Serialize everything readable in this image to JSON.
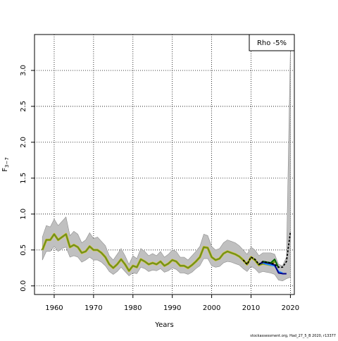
{
  "chart_data": {
    "type": "line",
    "xlabel": "Years",
    "ylabel_main": "F",
    "ylabel_sub": "3−7",
    "xlim": [
      1955,
      2021
    ],
    "ylim": [
      -0.12,
      3.5
    ],
    "xticks": [
      1960,
      1970,
      1980,
      1990,
      2000,
      2010,
      2020
    ],
    "yticks": [
      0.0,
      0.5,
      1.0,
      1.5,
      2.0,
      2.5,
      3.0
    ],
    "ytick_labels": [
      "0.0",
      "0.5",
      "1.0",
      "1.5",
      "2.0",
      "2.5",
      "3.0"
    ],
    "grid": true,
    "legend": {
      "text": "Rho -5%",
      "position": "top-right"
    },
    "footer": "stockassessment.org, Had_27_5_B 2020, r13377",
    "band": {
      "color": "#c0c0c0",
      "x": [
        1957,
        1958,
        1959,
        1960,
        1961,
        1962,
        1963,
        1964,
        1965,
        1966,
        1967,
        1968,
        1969,
        1970,
        1971,
        1972,
        1973,
        1974,
        1975,
        1976,
        1977,
        1978,
        1979,
        1980,
        1981,
        1982,
        1983,
        1984,
        1985,
        1986,
        1987,
        1988,
        1989,
        1990,
        1991,
        1992,
        1993,
        1994,
        1995,
        1996,
        1997,
        1998,
        1999,
        2000,
        2001,
        2002,
        2003,
        2004,
        2005,
        2006,
        2007,
        2008,
        2009,
        2010,
        2011,
        2012,
        2013,
        2014,
        2015,
        2016,
        2017,
        2018,
        2019,
        2020
      ],
      "upper": [
        0.68,
        0.84,
        0.82,
        0.93,
        0.84,
        0.9,
        0.96,
        0.7,
        0.76,
        0.72,
        0.6,
        0.64,
        0.74,
        0.66,
        0.68,
        0.62,
        0.56,
        0.42,
        0.36,
        0.44,
        0.52,
        0.42,
        0.3,
        0.42,
        0.38,
        0.52,
        0.48,
        0.42,
        0.45,
        0.42,
        0.48,
        0.4,
        0.44,
        0.5,
        0.48,
        0.4,
        0.4,
        0.36,
        0.42,
        0.48,
        0.55,
        0.72,
        0.7,
        0.55,
        0.5,
        0.52,
        0.6,
        0.64,
        0.62,
        0.6,
        0.56,
        0.5,
        0.44,
        0.54,
        0.5,
        0.42,
        0.46,
        0.46,
        0.46,
        0.44,
        0.3,
        0.28,
        0.4,
        3.3
      ],
      "lower": [
        0.36,
        0.48,
        0.48,
        0.55,
        0.48,
        0.52,
        0.54,
        0.4,
        0.42,
        0.4,
        0.33,
        0.36,
        0.4,
        0.36,
        0.36,
        0.33,
        0.28,
        0.2,
        0.16,
        0.2,
        0.26,
        0.2,
        0.14,
        0.18,
        0.17,
        0.26,
        0.24,
        0.2,
        0.22,
        0.21,
        0.24,
        0.19,
        0.21,
        0.25,
        0.23,
        0.18,
        0.18,
        0.16,
        0.19,
        0.24,
        0.28,
        0.38,
        0.38,
        0.28,
        0.26,
        0.27,
        0.32,
        0.34,
        0.33,
        0.31,
        0.29,
        0.24,
        0.2,
        0.27,
        0.24,
        0.18,
        0.2,
        0.19,
        0.18,
        0.16,
        0.08,
        0.07,
        0.1,
        0.12
      ]
    },
    "series": [
      {
        "color": "#6b8e23",
        "x": [
          1957,
          1958,
          1959,
          1960,
          1961,
          1962,
          1963,
          1964,
          1965,
          1966,
          1967,
          1968,
          1969,
          1970,
          1971,
          1972,
          1973,
          1974,
          1975,
          1976,
          1977,
          1978,
          1979,
          1980,
          1981,
          1982,
          1983,
          1984,
          1985,
          1986,
          1987,
          1988,
          1989,
          1990,
          1991,
          1992,
          1993,
          1994,
          1995,
          1996,
          1997,
          1998,
          1999,
          2000,
          2001,
          2002,
          2003,
          2004,
          2005,
          2006,
          2007,
          2008,
          2009,
          2010,
          2011,
          2012,
          2013,
          2014,
          2015,
          2016
        ],
        "values": [
          0.5,
          0.64,
          0.64,
          0.72,
          0.64,
          0.68,
          0.72,
          0.54,
          0.57,
          0.54,
          0.46,
          0.48,
          0.55,
          0.5,
          0.5,
          0.46,
          0.4,
          0.3,
          0.25,
          0.3,
          0.37,
          0.3,
          0.21,
          0.28,
          0.26,
          0.37,
          0.34,
          0.3,
          0.32,
          0.3,
          0.34,
          0.28,
          0.31,
          0.36,
          0.34,
          0.28,
          0.28,
          0.25,
          0.29,
          0.34,
          0.4,
          0.54,
          0.53,
          0.4,
          0.36,
          0.38,
          0.45,
          0.48,
          0.46,
          0.44,
          0.41,
          0.36,
          0.3,
          0.4,
          0.36,
          0.29,
          0.31,
          0.3,
          0.29,
          0.34
        ]
      },
      {
        "color": "#1e90ff",
        "x": [
          2013,
          2014,
          2015,
          2016,
          2017,
          2018
        ],
        "values": [
          0.32,
          0.3,
          0.29,
          0.28,
          0.2,
          0.18
        ]
      },
      {
        "color": "#00008b",
        "x": [
          2012,
          2013,
          2014,
          2015,
          2016,
          2017,
          2018,
          2019
        ],
        "values": [
          0.3,
          0.33,
          0.32,
          0.31,
          0.29,
          0.18,
          0.17,
          0.17
        ]
      },
      {
        "color": "#006400",
        "x": [
          2013,
          2014,
          2015,
          2016,
          2017
        ],
        "values": [
          0.34,
          0.33,
          0.32,
          0.37,
          0.25
        ]
      },
      {
        "color": "#000000",
        "dashed": true,
        "x": [
          2008,
          2009,
          2010,
          2011,
          2012,
          2013,
          2014,
          2015,
          2016,
          2017,
          2018,
          2019,
          2020
        ],
        "values": [
          0.36,
          0.3,
          0.4,
          0.37,
          0.3,
          0.34,
          0.33,
          0.32,
          0.3,
          0.26,
          0.26,
          0.34,
          0.75
        ]
      }
    ]
  }
}
